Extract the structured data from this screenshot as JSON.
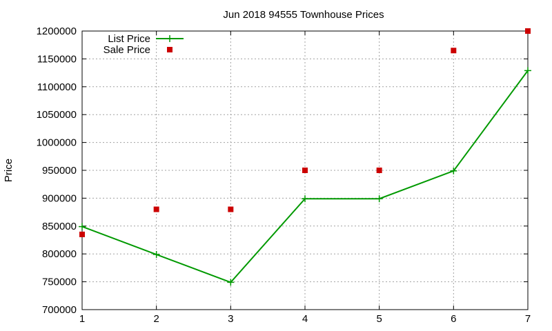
{
  "chart_data": {
    "type": "line",
    "title": "Jun 2018 94555 Townhouse Prices",
    "xlabel": "",
    "ylabel": "Price",
    "x": [
      1,
      2,
      3,
      4,
      5,
      6,
      7
    ],
    "xlim": [
      1,
      7
    ],
    "ylim": [
      700000,
      1200000
    ],
    "xticks": [
      1,
      2,
      3,
      4,
      5,
      6,
      7
    ],
    "yticks": [
      700000,
      750000,
      800000,
      850000,
      900000,
      950000,
      1000000,
      1050000,
      1100000,
      1150000,
      1200000
    ],
    "grid": true,
    "legend_position": "top-left",
    "series": [
      {
        "name": "List Price",
        "style": "line-with-plus-markers",
        "color": "#009900",
        "values": [
          849000,
          799000,
          749000,
          899000,
          899000,
          949000,
          1129000
        ]
      },
      {
        "name": "Sale Price",
        "style": "square-markers",
        "color": "#cc0000",
        "values": [
          835000,
          880000,
          880000,
          950000,
          950000,
          1165000,
          1200000
        ]
      }
    ]
  }
}
